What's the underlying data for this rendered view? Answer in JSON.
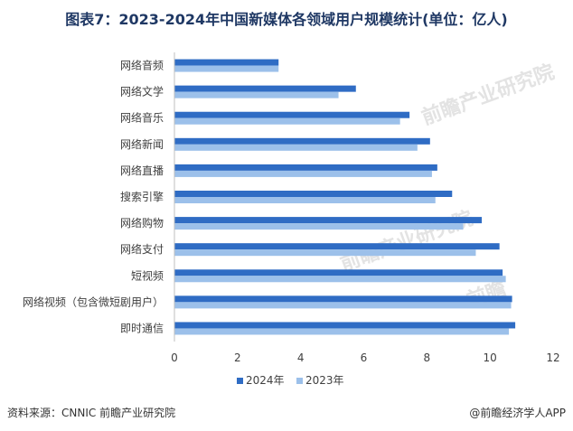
{
  "title": "图表7：2023-2024年中国新媒体各领域用户规模统计(单位：亿人)",
  "footer": {
    "source": "资料来源：CNNIC 前瞻产业研究院",
    "brand": "@前瞻经济学人APP"
  },
  "colors": {
    "series_2024": "#2f6cc4",
    "series_2023": "#9cc0ea",
    "axis": "#bfbfbf",
    "text": "#404040"
  },
  "chart_data": {
    "type": "bar",
    "orientation": "horizontal",
    "title": "图表7：2023-2024年中国新媒体各领域用户规模统计(单位：亿人)",
    "categories": [
      "网络音频",
      "网络文学",
      "网络音乐",
      "网络新闻",
      "网络直播",
      "搜索引擎",
      "网络购物",
      "网络支付",
      "短视频",
      "网络视频（包含微短剧用户）",
      "即时通信"
    ],
    "series": [
      {
        "name": "2024年",
        "values": [
          3.3,
          5.75,
          7.45,
          8.1,
          8.33,
          8.8,
          9.74,
          10.3,
          10.4,
          10.7,
          10.8
        ]
      },
      {
        "name": "2023年",
        "values": [
          3.3,
          5.2,
          7.15,
          7.7,
          8.16,
          8.27,
          9.15,
          9.55,
          10.5,
          10.67,
          10.6
        ]
      }
    ],
    "xlim": [
      0,
      12
    ],
    "xticks": [
      0,
      2,
      4,
      6,
      8,
      10,
      12
    ],
    "legend": "bottom"
  }
}
